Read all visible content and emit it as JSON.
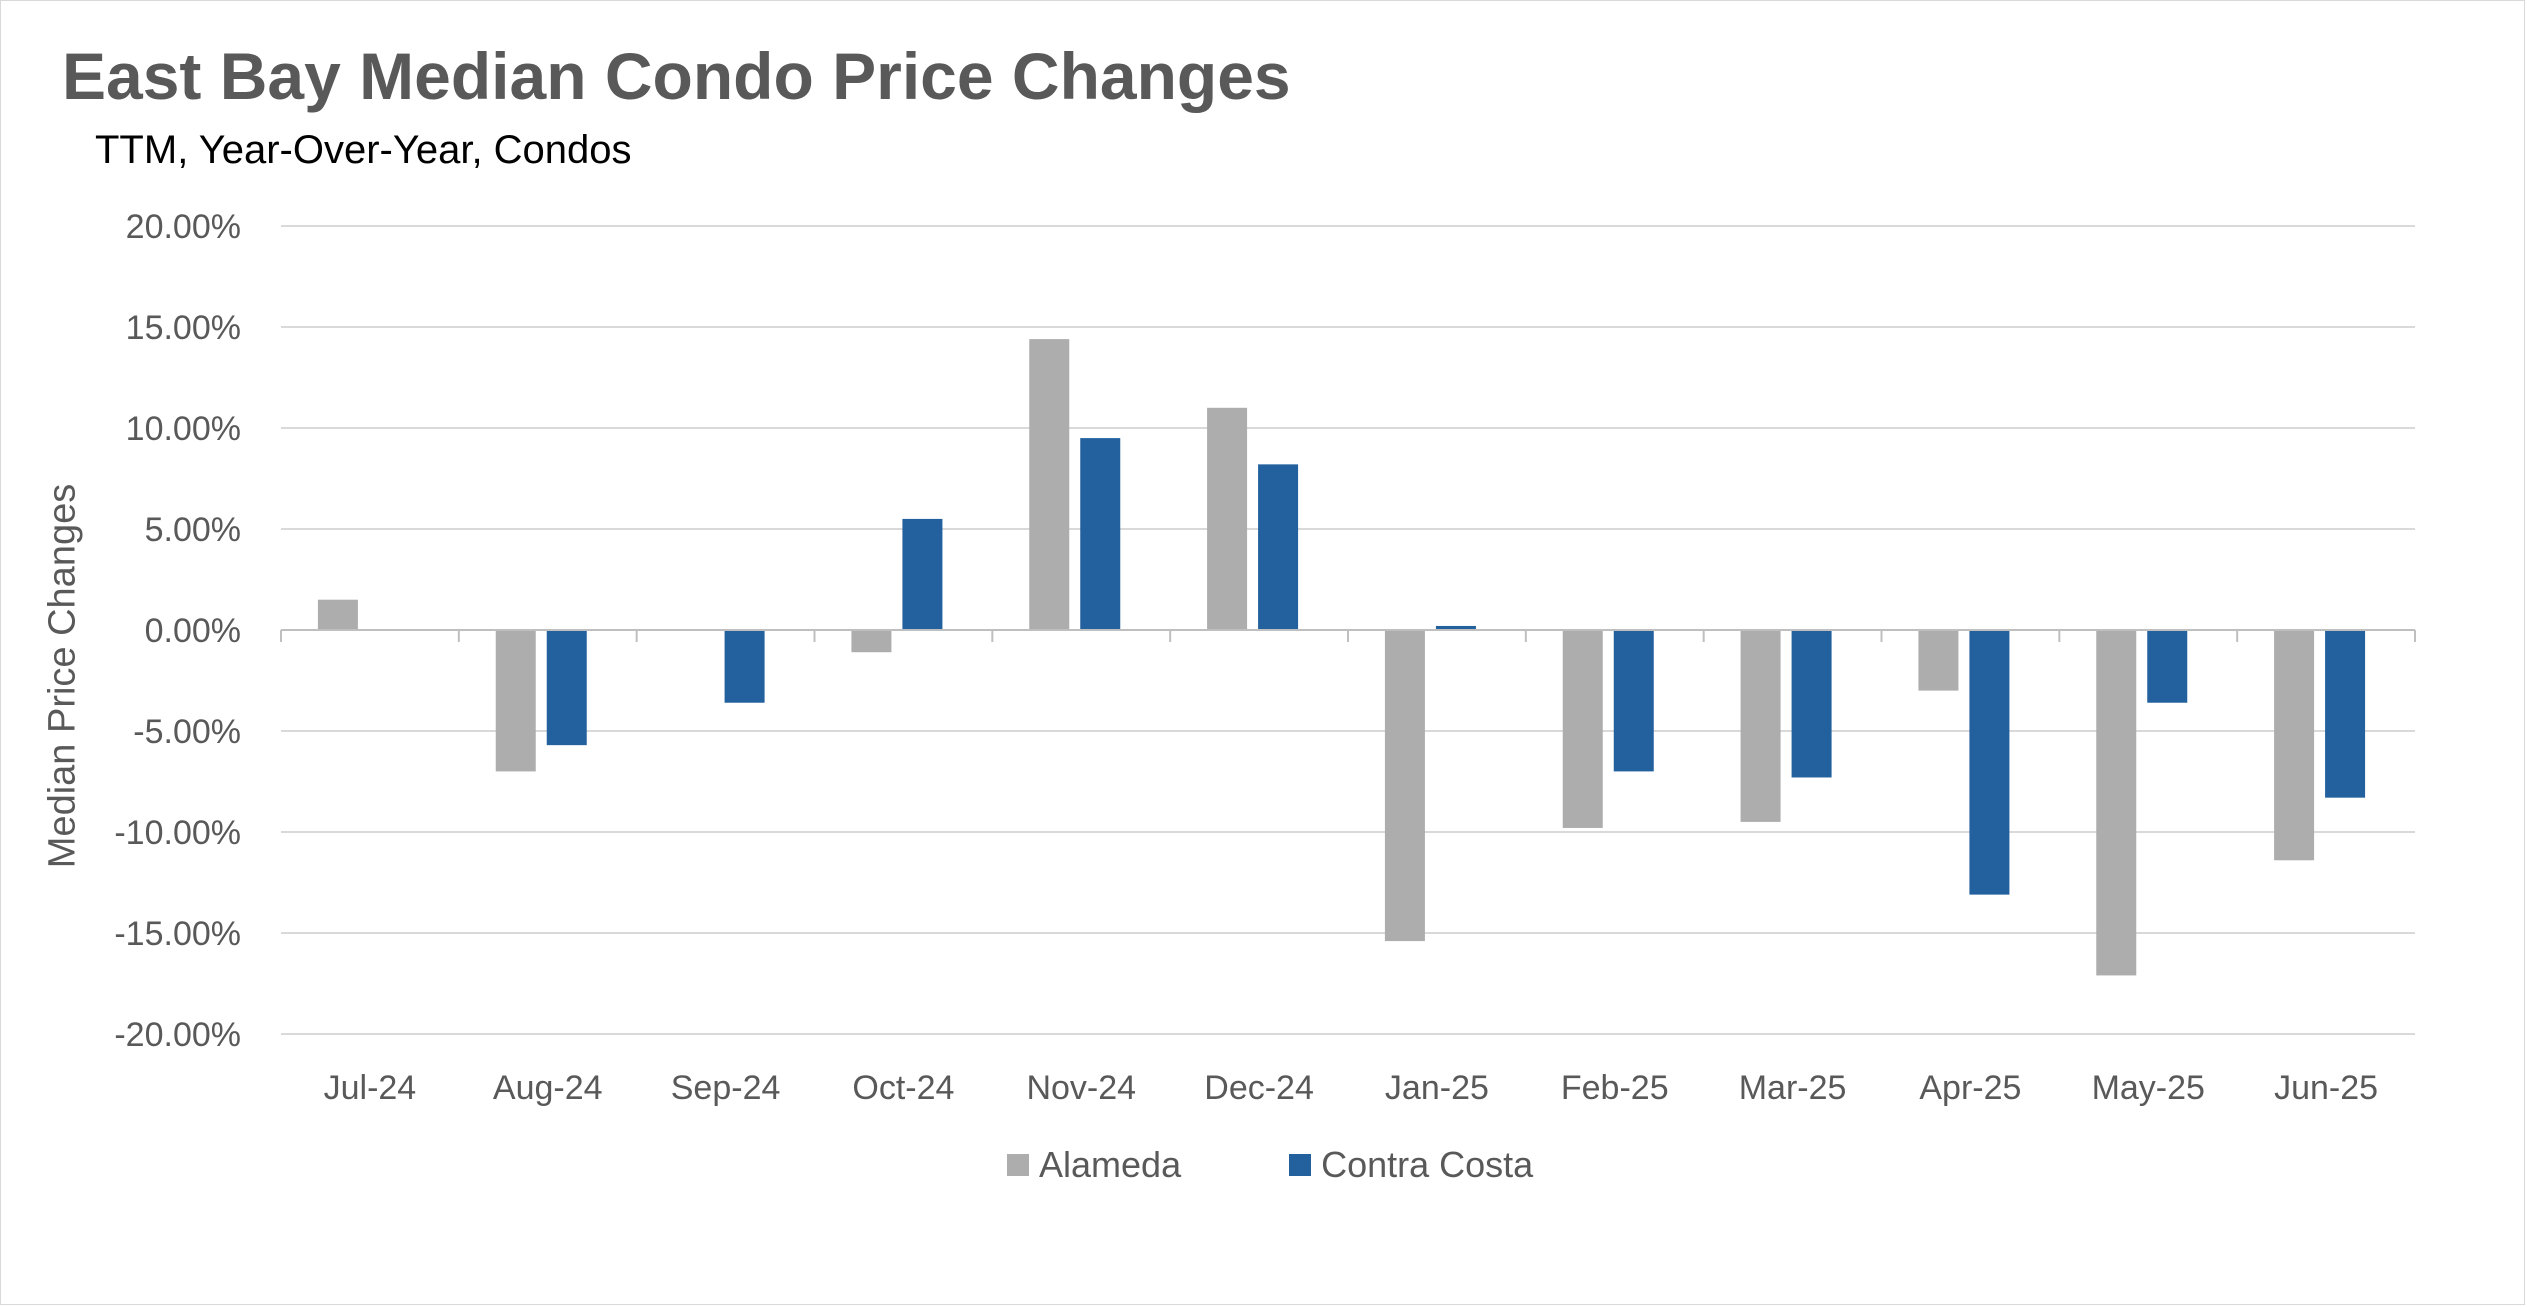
{
  "title": "East Bay Median Condo Price Changes",
  "subtitle": "TTM, Year-Over-Year,  Condos",
  "colors": {
    "alameda": "#adadad",
    "contra_costa": "#22609e",
    "grid": "#d9d9d9",
    "axis": "#bfbfbf"
  },
  "chart_data": {
    "type": "bar",
    "title": "East Bay Median Condo Price Changes",
    "subtitle": "TTM, Year-Over-Year,  Condos",
    "xlabel": "",
    "ylabel": "Median Price Changes",
    "ylim": [
      -20,
      20
    ],
    "yticks": [
      20,
      15,
      10,
      5,
      0,
      -5,
      -10,
      -15,
      -20
    ],
    "ytick_labels": [
      "20.00%",
      "15.00%",
      "10.00%",
      "5.00%",
      "0.00%",
      "-5.00%",
      "-10.00%",
      "-15.00%",
      "-20.00%"
    ],
    "grid": true,
    "legend_position": "bottom",
    "categories": [
      "Jul-24",
      "Aug-24",
      "Sep-24",
      "Oct-24",
      "Nov-24",
      "Dec-24",
      "Jan-25",
      "Feb-25",
      "Mar-25",
      "Apr-25",
      "May-25",
      "Jun-25"
    ],
    "series": [
      {
        "name": "Alameda",
        "color": "#adadad",
        "values": [
          1.5,
          -7.0,
          0.0,
          -1.1,
          14.4,
          11.0,
          -15.4,
          -9.8,
          -9.5,
          -3.0,
          -17.1,
          -11.4
        ]
      },
      {
        "name": "Contra Costa",
        "color": "#22609e",
        "values": [
          0.0,
          -5.7,
          -3.6,
          5.5,
          9.5,
          8.2,
          0.2,
          -7.0,
          -7.3,
          -13.1,
          -3.6,
          -8.3
        ]
      }
    ]
  }
}
